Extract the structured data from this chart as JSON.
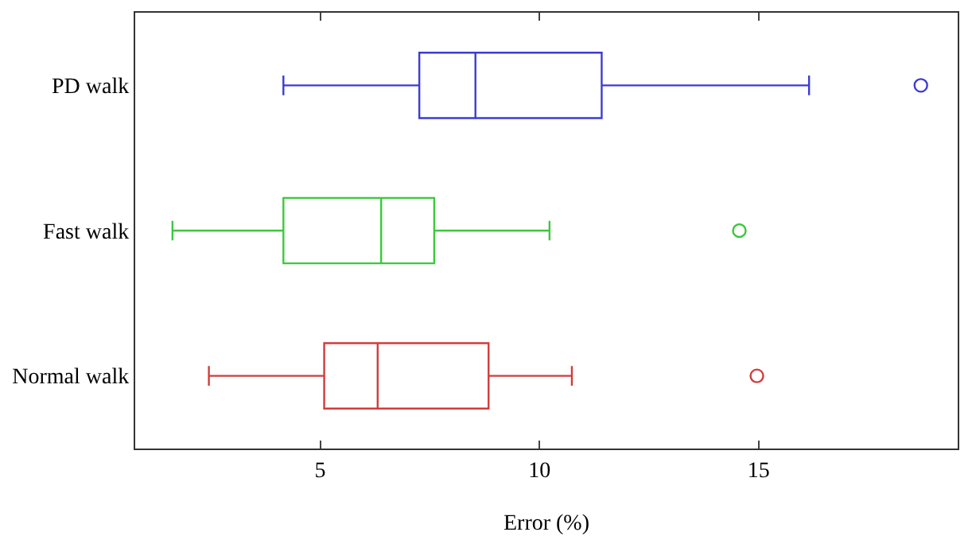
{
  "chart_data": {
    "type": "box",
    "orientation": "horizontal",
    "xlabel": "Error (%)",
    "categories": [
      "PD walk",
      "Fast walk",
      "Normal walk"
    ],
    "colors": [
      "#3c3cd2",
      "#3cc83c",
      "#d23c3c"
    ],
    "boxes": [
      {
        "low": 4.16,
        "q1": 7.26,
        "median": 8.54,
        "q3": 11.42,
        "high": 16.15,
        "outliers": [
          18.7
        ]
      },
      {
        "low": 1.63,
        "q1": 4.16,
        "median": 6.39,
        "q3": 7.6,
        "high": 10.23,
        "outliers": [
          14.56
        ]
      },
      {
        "low": 2.46,
        "q1": 5.09,
        "median": 6.31,
        "q3": 8.84,
        "high": 10.74,
        "outliers": [
          14.96
        ]
      }
    ],
    "xlim": [
      0.78,
      19.54
    ],
    "xticks": [
      5,
      10,
      15
    ],
    "grid": false
  }
}
